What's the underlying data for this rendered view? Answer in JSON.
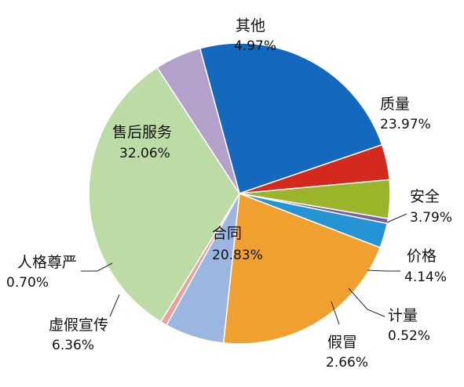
{
  "chart_data": {
    "type": "pie",
    "start_angle_deg": -15.2,
    "direction": "clockwise",
    "slices": [
      {
        "name": "质量",
        "value": 23.97,
        "label": "23.97%",
        "color": "#1469bf"
      },
      {
        "name": "安全",
        "value": 3.79,
        "label": "3.79%",
        "color": "#d4291f"
      },
      {
        "name": "价格",
        "value": 4.14,
        "label": "4.14%",
        "color": "#9ab52a"
      },
      {
        "name": "计量",
        "value": 0.52,
        "label": "0.52%",
        "color": "#7a5ca8"
      },
      {
        "name": "假冒",
        "value": 2.66,
        "label": "2.66%",
        "color": "#2494d4"
      },
      {
        "name": "合同",
        "value": 20.83,
        "label": "20.83%",
        "color": "#f0a02e"
      },
      {
        "name": "虚假宣传",
        "value": 6.36,
        "label": "6.36%",
        "color": "#9cb6e2"
      },
      {
        "name": "人格尊严",
        "value": 0.7,
        "label": "0.70%",
        "color": "#eba19b"
      },
      {
        "name": "售后服务",
        "value": 32.06,
        "label": "32.06%",
        "color": "#bddca5"
      },
      {
        "name": "其他",
        "value": 4.97,
        "label": "4.97%",
        "color": "#b3a1cc"
      }
    ]
  }
}
